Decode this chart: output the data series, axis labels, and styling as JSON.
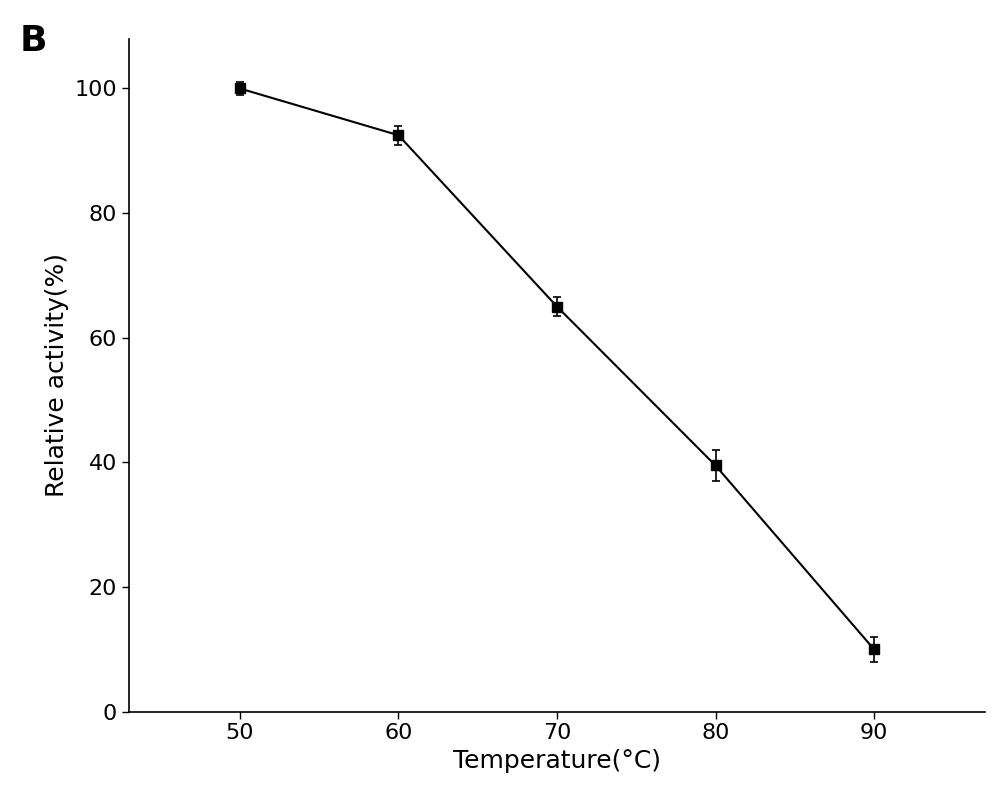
{
  "x": [
    50,
    60,
    70,
    80,
    90
  ],
  "y": [
    100,
    92.5,
    65,
    39.5,
    10
  ],
  "yerr": [
    1.0,
    1.5,
    1.5,
    2.5,
    2.0
  ],
  "xlabel": "Temperature(°C)",
  "ylabel": "Relative activity(%)",
  "panel_label": "B",
  "xlim": [
    43,
    97
  ],
  "ylim": [
    0,
    108
  ],
  "xticks": [
    50,
    60,
    70,
    80,
    90
  ],
  "yticks": [
    0,
    20,
    40,
    60,
    80,
    100
  ],
  "line_color": "#000000",
  "marker": "-s",
  "marker_size": 7,
  "marker_color": "#000000",
  "line_width": 1.5,
  "font_size_label": 18,
  "font_size_tick": 16,
  "font_size_panel": 26,
  "background_color": "#ffffff"
}
